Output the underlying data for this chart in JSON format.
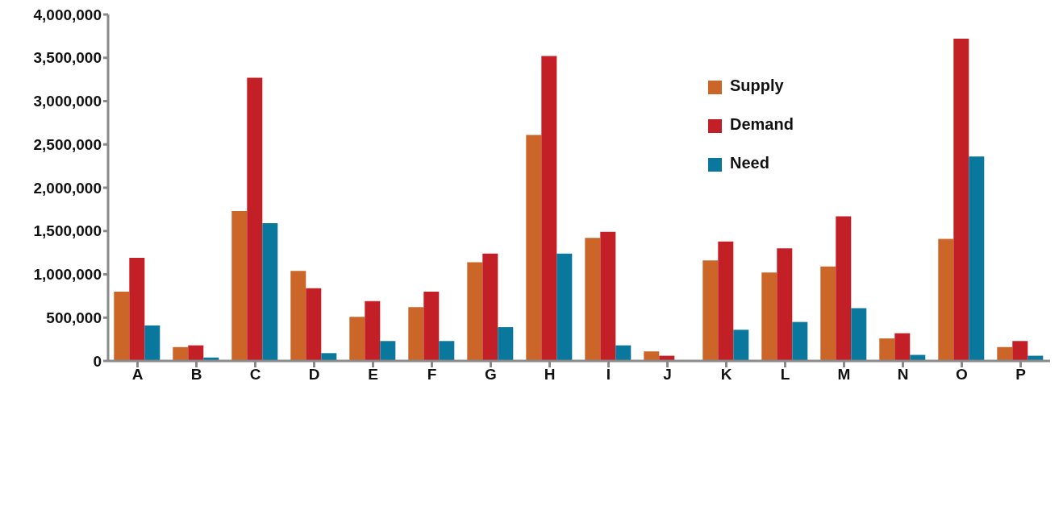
{
  "chart_data": {
    "type": "bar",
    "categories": [
      "A",
      "B",
      "C",
      "D",
      "E",
      "F",
      "G",
      "H",
      "I",
      "J",
      "K",
      "L",
      "M",
      "N",
      "O",
      "P"
    ],
    "series": [
      {
        "name": "Supply",
        "color": "#cb6528",
        "values": [
          800000,
          160000,
          1730000,
          1040000,
          510000,
          620000,
          1140000,
          2610000,
          1420000,
          110000,
          1160000,
          1020000,
          1090000,
          260000,
          1410000,
          160000
        ]
      },
      {
        "name": "Demand",
        "color": "#c31f26",
        "values": [
          1190000,
          180000,
          3270000,
          840000,
          690000,
          800000,
          1240000,
          3520000,
          1490000,
          60000,
          1380000,
          1300000,
          1670000,
          320000,
          3720000,
          230000
        ]
      },
      {
        "name": "Need",
        "color": "#0a779c",
        "values": [
          410000,
          40000,
          1590000,
          90000,
          230000,
          230000,
          390000,
          1240000,
          180000,
          null,
          360000,
          450000,
          610000,
          70000,
          2360000,
          60000
        ]
      }
    ],
    "ylim": [
      0,
      4000000
    ],
    "yticks": [
      0,
      {
        "value": 500000,
        "label": "500,000"
      },
      {
        "value": 1000000,
        "label": "1,000,000"
      },
      {
        "value": 1500000,
        "label": "1,500,000"
      },
      {
        "value": 2000000,
        "label": "2,000,000"
      },
      {
        "value": 2500000,
        "label": "2,500,000"
      },
      {
        "value": 3000000,
        "label": "3,000,000"
      },
      {
        "value": 3500000,
        "label": "3,500,000"
      },
      {
        "value": 4000000,
        "label": "4,000,000"
      }
    ],
    "grid": false,
    "legend": "top right"
  }
}
